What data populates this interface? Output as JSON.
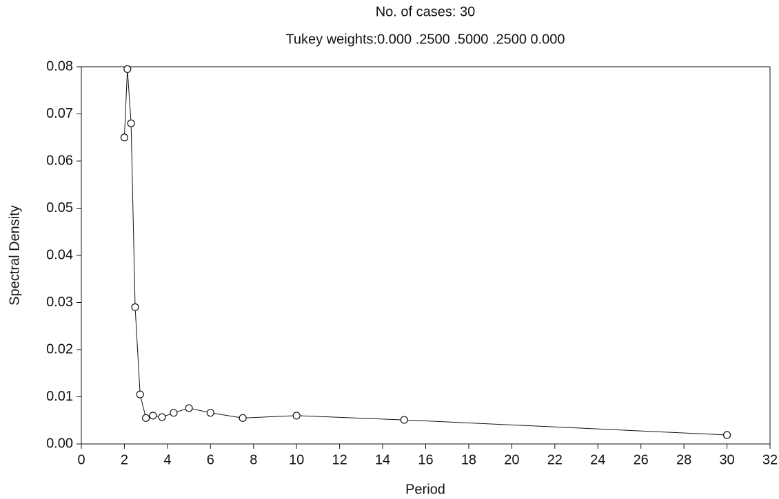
{
  "chart_data": {
    "type": "line",
    "title": "No. of cases: 30",
    "subtitle": "Tukey weights:0.000 .2500 .5000 .2500 0.000",
    "x_label": "Period",
    "y_label": "Spectral Density",
    "x": [
      2,
      2.14,
      2.31,
      2.5,
      2.73,
      3,
      3.33,
      3.75,
      4.29,
      5,
      6,
      7.5,
      10,
      15,
      30
    ],
    "series": [
      {
        "color": "#111111",
        "values": [
          0.065,
          0.0795,
          0.068,
          0.029,
          0.0105,
          0.0055,
          0.006,
          0.0057,
          0.0066,
          0.0076,
          0.0066,
          0.0055,
          0.006,
          0.0051,
          0.0019
        ]
      }
    ],
    "xlim": [
      0,
      32
    ],
    "xticks": [
      0,
      2,
      4,
      6,
      8,
      10,
      12,
      14,
      16,
      18,
      20,
      22,
      24,
      26,
      28,
      30,
      32
    ],
    "ylim": [
      0,
      0.08
    ],
    "yticks": [
      {
        "value": 0,
        "label": "0.00"
      },
      0.01,
      0.02,
      0.03,
      0.04,
      0.05,
      0.06,
      0.07,
      0.08
    ],
    "markers": "open-circle"
  }
}
